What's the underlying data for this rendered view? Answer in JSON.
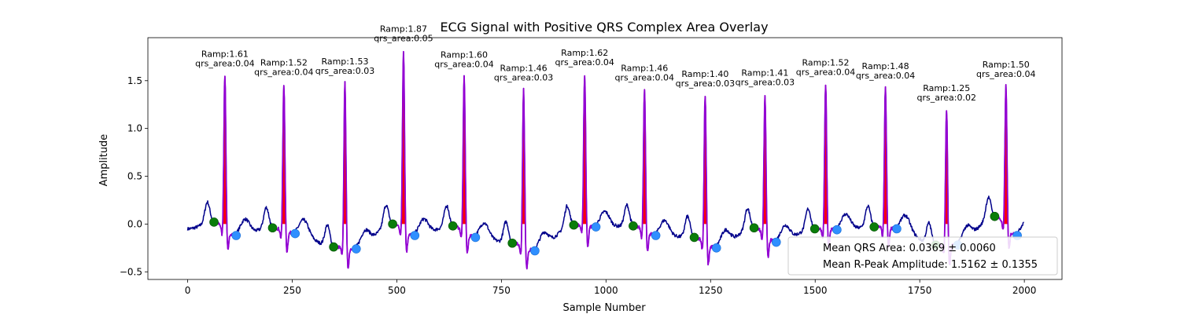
{
  "chart_data": {
    "type": "line",
    "title": "ECG Signal with Positive QRS Complex Area Overlay",
    "xlabel": "Sample Number",
    "ylabel": "Amplitude",
    "xlim": [
      -95,
      2090
    ],
    "ylim": [
      -0.58,
      1.95
    ],
    "xticks": [
      0,
      250,
      500,
      750,
      1000,
      1250,
      1500,
      1750,
      2000
    ],
    "yticks": [
      -0.5,
      0.0,
      0.5,
      1.0,
      1.5
    ],
    "ytick_labels": [
      "−0.5",
      "0.0",
      "0.5",
      "1.0",
      "1.5"
    ],
    "grid": false,
    "colors": {
      "signal": "#00008b",
      "qrs_segment": "#9400d3",
      "qrs_area_fill": "#ff0000",
      "onset_marker": "#0a7d0a",
      "offset_marker": "#2f8fff"
    },
    "beats": [
      {
        "peak_x": 89,
        "ramp": 1.61,
        "qrs_area": 0.04,
        "label_ramp": "Ramp:1.61",
        "label_area": "qrs_area:0.04",
        "onset": [
          63,
          0.02
        ],
        "offset": [
          116,
          -0.12
        ]
      },
      {
        "peak_x": 230,
        "ramp": 1.52,
        "qrs_area": 0.04,
        "label_ramp": "Ramp:1.52",
        "label_area": "qrs_area:0.04",
        "onset": [
          203,
          -0.04
        ],
        "offset": [
          257,
          -0.1
        ]
      },
      {
        "peak_x": 376,
        "ramp": 1.53,
        "qrs_area": 0.03,
        "label_ramp": "Ramp:1.53",
        "label_area": "qrs_area:0.03",
        "onset": [
          349,
          -0.24
        ],
        "offset": [
          403,
          -0.26
        ]
      },
      {
        "peak_x": 516,
        "ramp": 1.87,
        "qrs_area": 0.05,
        "label_ramp": "Ramp:1.87",
        "label_area": "qrs_area:0.05",
        "onset": [
          490,
          0.0
        ],
        "offset": [
          543,
          -0.12
        ]
      },
      {
        "peak_x": 661,
        "ramp": 1.6,
        "qrs_area": 0.04,
        "label_ramp": "Ramp:1.60",
        "label_area": "qrs_area:0.04",
        "onset": [
          634,
          -0.02
        ],
        "offset": [
          688,
          -0.14
        ]
      },
      {
        "peak_x": 803,
        "ramp": 1.46,
        "qrs_area": 0.03,
        "label_ramp": "Ramp:1.46",
        "label_area": "qrs_area:0.03",
        "onset": [
          776,
          -0.2
        ],
        "offset": [
          830,
          -0.28
        ]
      },
      {
        "peak_x": 949,
        "ramp": 1.62,
        "qrs_area": 0.04,
        "label_ramp": "Ramp:1.62",
        "label_area": "qrs_area:0.04",
        "onset": [
          923,
          -0.01
        ],
        "offset": [
          976,
          -0.03
        ]
      },
      {
        "peak_x": 1092,
        "ramp": 1.46,
        "qrs_area": 0.04,
        "label_ramp": "Ramp:1.46",
        "label_area": "qrs_area:0.04",
        "onset": [
          1065,
          -0.02
        ],
        "offset": [
          1119,
          -0.12
        ]
      },
      {
        "peak_x": 1237,
        "ramp": 1.4,
        "qrs_area": 0.03,
        "label_ramp": "Ramp:1.40",
        "label_area": "qrs_area:0.03",
        "onset": [
          1211,
          -0.14
        ],
        "offset": [
          1264,
          -0.25
        ]
      },
      {
        "peak_x": 1380,
        "ramp": 1.41,
        "qrs_area": 0.03,
        "label_ramp": "Ramp:1.41",
        "label_area": "qrs_area:0.03",
        "onset": [
          1354,
          -0.04
        ],
        "offset": [
          1407,
          -0.19
        ]
      },
      {
        "peak_x": 1525,
        "ramp": 1.52,
        "qrs_area": 0.04,
        "label_ramp": "Ramp:1.52",
        "label_area": "qrs_area:0.04",
        "onset": [
          1499,
          -0.05
        ],
        "offset": [
          1552,
          -0.06
        ]
      },
      {
        "peak_x": 1668,
        "ramp": 1.48,
        "qrs_area": 0.04,
        "label_ramp": "Ramp:1.48",
        "label_area": "qrs_area:0.04",
        "onset": [
          1641,
          -0.03
        ],
        "offset": [
          1695,
          -0.05
        ]
      },
      {
        "peak_x": 1814,
        "ramp": 1.25,
        "qrs_area": 0.02,
        "label_ramp": "Ramp:1.25",
        "label_area": "qrs_area:0.02",
        "onset": [
          1788,
          -0.22
        ],
        "offset": [
          1841,
          -0.22
        ]
      },
      {
        "peak_x": 1956,
        "ramp": 1.5,
        "qrs_area": 0.04,
        "label_ramp": "Ramp:1.50",
        "label_area": "qrs_area:0.04",
        "onset": [
          1929,
          0.08
        ],
        "offset": [
          1983,
          -0.12
        ]
      }
    ],
    "legend": {
      "placement": "lower right",
      "entries": [
        "Mean QRS Area: 0.0369 ± 0.0060",
        "Mean R-Peak Amplitude: 1.5162 ± 0.1355"
      ]
    }
  }
}
